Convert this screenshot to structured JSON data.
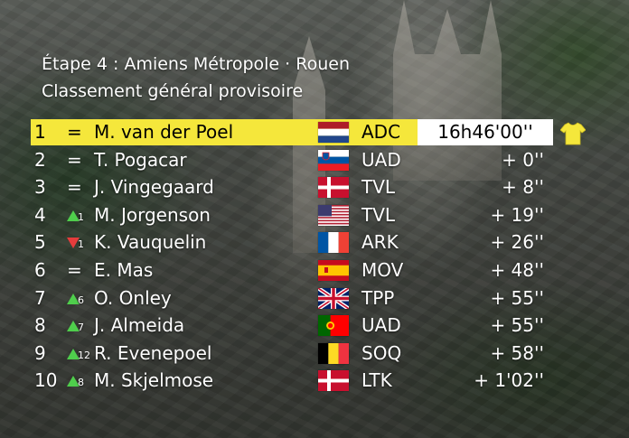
{
  "header": {
    "stage": "Étape 4 : Amiens Métropole · Rouen",
    "classification": "Classement général provisoire"
  },
  "leader_jersey_icon": "yellow-jersey-icon",
  "rows": [
    {
      "rank": "1",
      "move": "=",
      "move_type": "same",
      "delta": "",
      "name": "M. van der Poel",
      "flag": "netherlands",
      "team": "ADC",
      "time": "16h46'00''"
    },
    {
      "rank": "2",
      "move": "=",
      "move_type": "same",
      "delta": "",
      "name": "T. Pogacar",
      "flag": "slovenia",
      "team": "UAD",
      "time": "+ 0''"
    },
    {
      "rank": "3",
      "move": "=",
      "move_type": "same",
      "delta": "",
      "name": "J. Vingegaard",
      "flag": "denmark",
      "team": "TVL",
      "time": "+ 8''"
    },
    {
      "rank": "4",
      "move": "",
      "move_type": "up",
      "delta": "1",
      "name": "M. Jorgenson",
      "flag": "usa",
      "team": "TVL",
      "time": "+ 19''"
    },
    {
      "rank": "5",
      "move": "",
      "move_type": "down",
      "delta": "1",
      "name": "K. Vauquelin",
      "flag": "france",
      "team": "ARK",
      "time": "+ 26''"
    },
    {
      "rank": "6",
      "move": "=",
      "move_type": "same",
      "delta": "",
      "name": "E. Mas",
      "flag": "spain",
      "team": "MOV",
      "time": "+ 48''"
    },
    {
      "rank": "7",
      "move": "",
      "move_type": "up",
      "delta": "6",
      "name": "O. Onley",
      "flag": "uk",
      "team": "TPP",
      "time": "+ 55''"
    },
    {
      "rank": "8",
      "move": "",
      "move_type": "up",
      "delta": "7",
      "name": "J. Almeida",
      "flag": "portugal",
      "team": "UAD",
      "time": "+ 55''"
    },
    {
      "rank": "9",
      "move": "",
      "move_type": "up",
      "delta": "12",
      "name": "R. Evenepoel",
      "flag": "belgium",
      "team": "SOQ",
      "time": "+ 58''"
    },
    {
      "rank": "10",
      "move": "",
      "move_type": "up",
      "delta": "8",
      "name": "M. Skjelmose",
      "flag": "denmark",
      "team": "LTK",
      "time": "+ 1'02''"
    }
  ],
  "colors": {
    "leader_bg": "#f5e73b",
    "up": "#4fce4c",
    "down": "#e53c3c",
    "text": "#ffffff"
  }
}
